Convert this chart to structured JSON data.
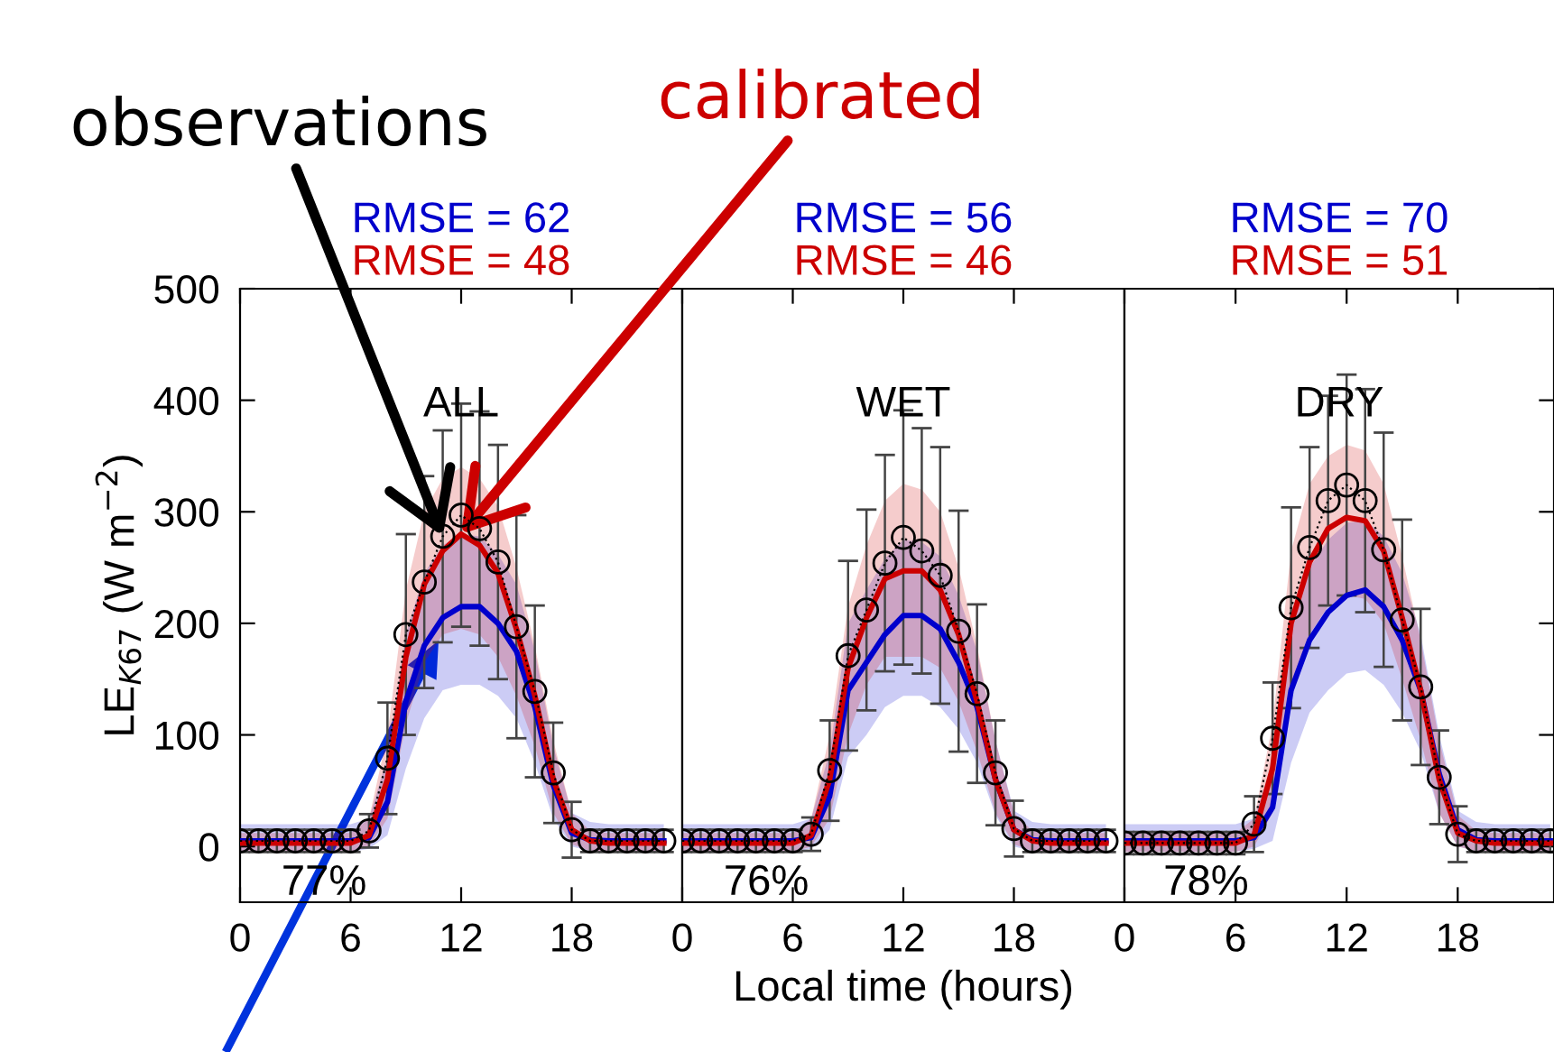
{
  "chart_data": [
    {
      "type": "line",
      "title": "ALL",
      "ylabel": "LE$_{K67}$ (W m$^{−2}$)",
      "x": [
        0,
        1,
        2,
        3,
        4,
        5,
        6,
        7,
        8,
        9,
        10,
        11,
        12,
        13,
        14,
        15,
        16,
        17,
        18,
        19,
        20,
        21,
        22,
        23
      ],
      "xlim": [
        0,
        24
      ],
      "xticks": [
        0,
        6,
        12,
        18
      ],
      "ylim": [
        -50,
        500
      ],
      "yticks": [
        0,
        100,
        200,
        300,
        400,
        500
      ],
      "tick_labels": true,
      "grid": false,
      "series": [
        {
          "color": "#000000",
          "marker": "circle",
          "line_style": "dotted",
          "values": [
            5,
            5,
            5,
            5,
            5,
            5,
            5,
            14,
            79,
            190,
            237,
            278,
            297,
            285,
            255,
            197,
            139,
            66,
            15,
            5,
            5,
            5,
            5,
            5
          ],
          "errors": [
            10,
            10,
            10,
            10,
            10,
            10,
            10,
            15,
            50,
            90,
            95,
            95,
            100,
            105,
            105,
            100,
            77,
            45,
            25,
            10,
            10,
            10,
            10,
            10
          ]
        },
        {
          "color": "#0000cc",
          "values": [
            5,
            5,
            5,
            5,
            5,
            5,
            5,
            8,
            40,
            130,
            180,
            205,
            215,
            215,
            200,
            175,
            125,
            55,
            12,
            6,
            5,
            5,
            5,
            5
          ],
          "upper": [
            20,
            20,
            20,
            20,
            20,
            20,
            20,
            25,
            80,
            190,
            245,
            270,
            280,
            278,
            262,
            235,
            175,
            90,
            30,
            22,
            20,
            20,
            20,
            20
          ],
          "lower": [
            -5,
            -5,
            -5,
            -5,
            -5,
            -5,
            -5,
            -2,
            10,
            70,
            115,
            140,
            145,
            145,
            135,
            115,
            75,
            25,
            0,
            -4,
            -5,
            -5,
            -5,
            -5
          ]
        },
        {
          "color": "#cc0000",
          "values": [
            3,
            3,
            3,
            3,
            3,
            3,
            3,
            10,
            60,
            170,
            235,
            265,
            280,
            270,
            245,
            195,
            135,
            60,
            15,
            5,
            3,
            3,
            3,
            3
          ],
          "upper": [
            12,
            12,
            12,
            12,
            12,
            12,
            12,
            25,
            100,
            230,
            300,
            330,
            340,
            330,
            305,
            250,
            180,
            95,
            30,
            14,
            12,
            12,
            12,
            12
          ],
          "lower": [
            -5,
            -5,
            -5,
            -5,
            -5,
            -5,
            -5,
            0,
            25,
            110,
            165,
            190,
            195,
            190,
            170,
            135,
            90,
            30,
            2,
            -4,
            -5,
            -5,
            -5,
            -5
          ]
        }
      ],
      "annotations": [
        "RMSE = 62",
        "RMSE = 48",
        "77%",
        {
          "text": "observations",
          "x": 11,
          "y": 278
        },
        {
          "text": "calibrated",
          "x": 12,
          "y": 280
        }
      ]
    },
    {
      "type": "line",
      "title": "WET",
      "xlabel": "Local time (hours)",
      "x": [
        0,
        1,
        2,
        3,
        4,
        5,
        6,
        7,
        8,
        9,
        10,
        11,
        12,
        13,
        14,
        15,
        16,
        17,
        18,
        19,
        20,
        21,
        22,
        23
      ],
      "xlim": [
        0,
        24
      ],
      "xticks": [
        0,
        6,
        12,
        18
      ],
      "ylim": [
        -50,
        500
      ],
      "yticks": [
        0,
        100,
        200,
        300,
        400,
        500
      ],
      "tick_labels": "x",
      "grid": false,
      "series": [
        {
          "color": "#000000",
          "marker": "circle",
          "line_style": "dotted",
          "values": [
            5,
            5,
            5,
            5,
            5,
            5,
            5,
            11,
            68,
            171,
            212,
            254,
            277,
            265,
            243,
            193,
            137,
            66,
            16,
            5,
            5,
            5,
            5,
            5
          ],
          "errors": [
            10,
            10,
            10,
            10,
            10,
            10,
            10,
            15,
            45,
            85,
            90,
            97,
            114,
            110,
            115,
            108,
            80,
            47,
            25,
            10,
            10,
            10,
            10,
            10
          ]
        },
        {
          "color": "#0000cc",
          "values": [
            5,
            5,
            5,
            5,
            5,
            5,
            5,
            8,
            45,
            140,
            165,
            190,
            207,
            207,
            195,
            165,
            125,
            60,
            15,
            6,
            5,
            5,
            5,
            5
          ],
          "upper": [
            20,
            20,
            20,
            20,
            20,
            20,
            20,
            25,
            85,
            200,
            230,
            258,
            275,
            273,
            260,
            225,
            175,
            95,
            32,
            22,
            20,
            20,
            20,
            20
          ],
          "lower": [
            -5,
            -5,
            -5,
            -5,
            -5,
            -5,
            -5,
            -2,
            15,
            80,
            100,
            125,
            135,
            135,
            125,
            105,
            75,
            28,
            0,
            -4,
            -5,
            -5,
            -5,
            -5
          ]
        },
        {
          "color": "#cc0000",
          "values": [
            3,
            3,
            3,
            3,
            3,
            3,
            3,
            10,
            60,
            160,
            205,
            240,
            247,
            247,
            230,
            190,
            130,
            60,
            15,
            5,
            3,
            3,
            3,
            3
          ],
          "upper": [
            12,
            12,
            12,
            12,
            12,
            12,
            12,
            25,
            100,
            215,
            270,
            310,
            325,
            320,
            300,
            250,
            180,
            95,
            30,
            14,
            12,
            12,
            12,
            12
          ],
          "lower": [
            -5,
            -5,
            -5,
            -5,
            -5,
            -5,
            -5,
            0,
            25,
            100,
            145,
            170,
            170,
            170,
            160,
            130,
            85,
            30,
            2,
            -4,
            -5,
            -5,
            -5,
            -5
          ]
        }
      ],
      "annotations": [
        "RMSE = 56",
        "RMSE = 46",
        "76%"
      ]
    },
    {
      "type": "line",
      "title": "DRY",
      "x": [
        0,
        1,
        2,
        3,
        4,
        5,
        6,
        7,
        8,
        9,
        10,
        11,
        12,
        13,
        14,
        15,
        16,
        17,
        18,
        19,
        20,
        21,
        22,
        23
      ],
      "xlim": [
        0,
        23.2
      ],
      "xticks": [
        0,
        6,
        12,
        18
      ],
      "ylim": [
        -50,
        500
      ],
      "yticks": [
        0,
        100,
        200,
        300,
        400,
        500
      ],
      "tick_labels": "x",
      "grid": false,
      "series": [
        {
          "color": "#000000",
          "marker": "circle",
          "line_style": "dotted",
          "values": [
            3,
            3,
            3,
            3,
            3,
            3,
            3,
            20,
            97,
            214,
            268,
            310,
            324,
            310,
            266,
            203,
            143,
            62,
            11,
            5,
            5,
            5,
            5,
            5
          ],
          "errors": [
            10,
            10,
            10,
            10,
            10,
            10,
            10,
            25,
            50,
            90,
            90,
            94,
            99,
            100,
            105,
            90,
            70,
            42,
            25,
            10,
            10,
            10,
            10,
            10
          ]
        },
        {
          "color": "#0000cc",
          "values": [
            5,
            5,
            5,
            5,
            5,
            5,
            5,
            8,
            35,
            140,
            185,
            210,
            225,
            230,
            215,
            185,
            140,
            65,
            15,
            6,
            5,
            5,
            5,
            5
          ],
          "upper": [
            20,
            20,
            20,
            20,
            20,
            20,
            20,
            25,
            75,
            200,
            250,
            275,
            290,
            293,
            278,
            245,
            190,
            100,
            32,
            22,
            20,
            20,
            20,
            20
          ],
          "lower": [
            -5,
            -5,
            -5,
            -5,
            -5,
            -5,
            -5,
            -2,
            5,
            75,
            120,
            140,
            155,
            158,
            145,
            120,
            85,
            30,
            0,
            -4,
            -5,
            -5,
            -5,
            -5
          ]
        },
        {
          "color": "#cc0000",
          "values": [
            3,
            3,
            3,
            3,
            3,
            3,
            3,
            10,
            70,
            200,
            255,
            285,
            295,
            292,
            265,
            205,
            140,
            60,
            12,
            5,
            3,
            3,
            3,
            3
          ],
          "upper": [
            12,
            12,
            12,
            12,
            12,
            12,
            12,
            25,
            110,
            265,
            325,
            350,
            360,
            355,
            325,
            260,
            185,
            95,
            28,
            14,
            12,
            12,
            12,
            12
          ],
          "lower": [
            -5,
            -5,
            -5,
            -5,
            -5,
            -5,
            -5,
            0,
            30,
            140,
            190,
            215,
            225,
            222,
            200,
            150,
            95,
            30,
            0,
            -4,
            -5,
            -5,
            -5,
            -5
          ]
        }
      ],
      "annotations": [
        "RMSE = 70",
        "RMSE = 51",
        "78%"
      ]
    }
  ]
}
